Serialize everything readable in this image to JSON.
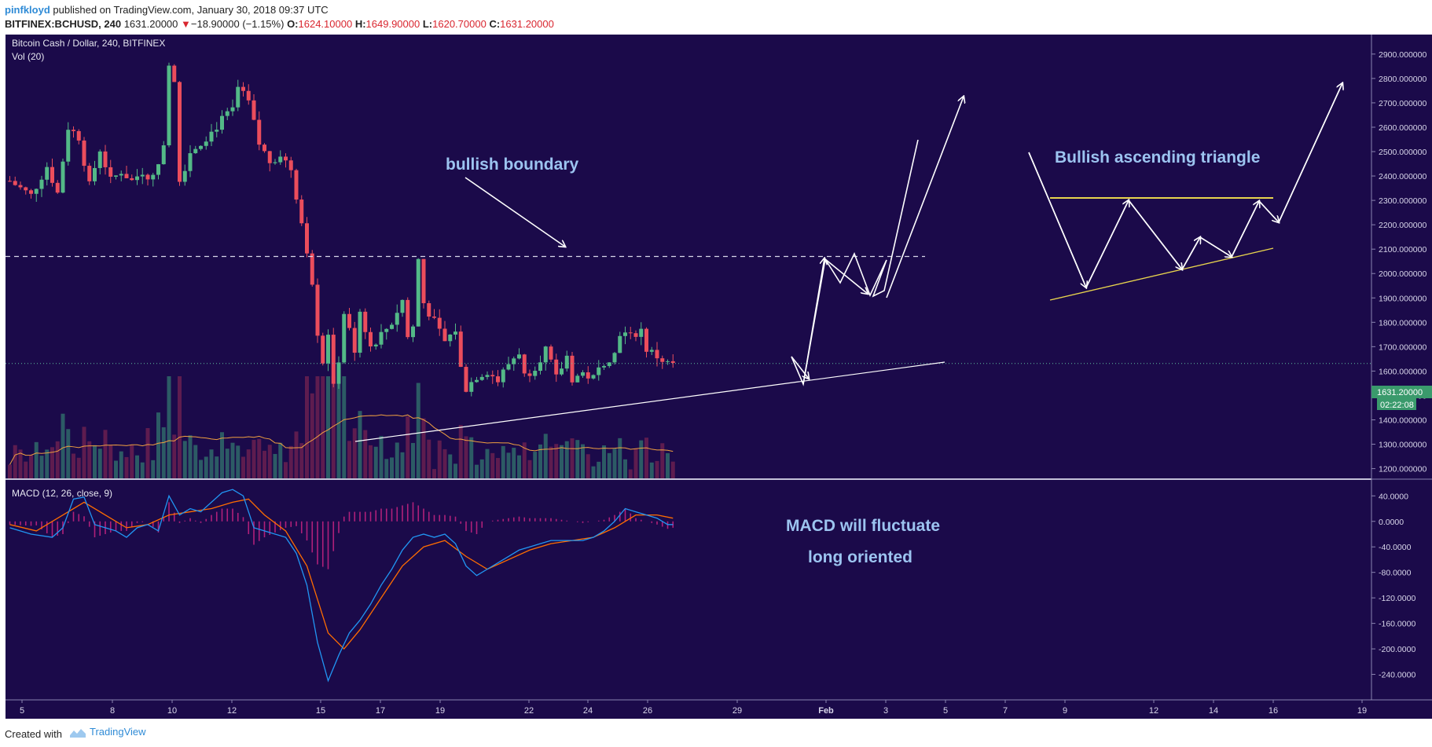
{
  "header": {
    "user": "pinfkloyd",
    "published": "published on TradingView.com, January 30, 2018 09:37 UTC",
    "symbol": "BITFINEX:BCHUSD, 240",
    "price": "1631.20000",
    "change_arrow": "▼",
    "change": "−18.90000 (−1.15%)",
    "o_label": "O:",
    "o_value": "1624.10000",
    "h_label": "H:",
    "h_value": "1649.90000",
    "l_label": "L:",
    "l_value": "1620.70000",
    "c_label": "C:",
    "c_value": "1631.20000"
  },
  "pane": {
    "title": "Bitcoin Cash / Dollar, 240, BITFINEX",
    "vol_label": "Vol (20)",
    "macd_label": "MACD (12, 26, close, 9)",
    "last_price_tag": "1631.20000",
    "countdown_tag": "02:22:08"
  },
  "annotations": {
    "bullish_boundary": "bullish boundary",
    "triangle": "Bullish ascending triangle",
    "macd_1": "MACD will fluctuate",
    "macd_2": "long oriented"
  },
  "footer": {
    "created_with": "Created with",
    "brand": "TradingView"
  },
  "colors": {
    "background": "#1b0a4a",
    "bull": "#53b987",
    "bear": "#eb4d5c",
    "macd": "#2196f3",
    "signal": "#ff6d00",
    "hist": "#b0207a",
    "triangle_line": "#e8d44d",
    "annotation_text": "#9cc4f0",
    "price_tag": "#3a9a6c"
  },
  "chart_data": {
    "type": "candlestick",
    "price_axis": {
      "ylim": [
        1160,
        2980
      ],
      "ticks": [
        "2900.000000",
        "2800.000000",
        "2700.000000",
        "2600.000000",
        "2500.000000",
        "2400.000000",
        "2300.000000",
        "2200.000000",
        "2100.000000",
        "2000.000000",
        "1900.000000",
        "1800.000000",
        "1700.000000",
        "1600.000000",
        "1500.000000",
        "1400.000000",
        "1300.000000",
        "1200.000000"
      ]
    },
    "macd_axis": {
      "ylim": [
        -280,
        65
      ],
      "ticks": [
        "40.0000",
        "0.0000",
        "-40.0000",
        "-80.0000",
        "-120.0000",
        "-160.0000",
        "-200.0000",
        "-240.0000"
      ]
    },
    "time_axis": {
      "ticks": [
        "5",
        "8",
        "10",
        "12",
        "15",
        "17",
        "19",
        "22",
        "24",
        "26",
        "29",
        "Feb",
        "3",
        "5",
        "7",
        "9",
        "12",
        "14",
        "16",
        "19"
      ]
    },
    "close_path": [
      [
        0,
        2380
      ],
      [
        4,
        2320
      ],
      [
        7,
        2440
      ],
      [
        9,
        2330
      ],
      [
        11,
        2600
      ],
      [
        13,
        2560
      ],
      [
        15,
        2360
      ],
      [
        17,
        2510
      ],
      [
        19,
        2380
      ],
      [
        21,
        2420
      ],
      [
        23,
        2380
      ],
      [
        25,
        2420
      ],
      [
        27,
        2390
      ],
      [
        29,
        2540
      ],
      [
        30,
        2870
      ],
      [
        31,
        2800
      ],
      [
        32,
        2380
      ],
      [
        34,
        2500
      ],
      [
        36,
        2540
      ],
      [
        38,
        2580
      ],
      [
        40,
        2630
      ],
      [
        42,
        2670
      ],
      [
        43,
        2760
      ],
      [
        45,
        2700
      ],
      [
        47,
        2530
      ],
      [
        49,
        2460
      ],
      [
        51,
        2490
      ],
      [
        53,
        2430
      ],
      [
        54,
        2320
      ],
      [
        56,
        2100
      ],
      [
        57,
        1970
      ],
      [
        58,
        1760
      ],
      [
        59,
        1640
      ],
      [
        60,
        1760
      ],
      [
        61,
        1530
      ],
      [
        62,
        1650
      ],
      [
        63,
        1840
      ],
      [
        65,
        1690
      ],
      [
        66,
        1850
      ],
      [
        68,
        1700
      ],
      [
        70,
        1750
      ],
      [
        72,
        1800
      ],
      [
        74,
        1890
      ],
      [
        75,
        1740
      ],
      [
        76,
        1780
      ],
      [
        77,
        2060
      ],
      [
        78,
        1880
      ],
      [
        80,
        1800
      ],
      [
        82,
        1720
      ],
      [
        84,
        1770
      ],
      [
        85,
        1610
      ],
      [
        86,
        1530
      ],
      [
        88,
        1580
      ],
      [
        90,
        1600
      ],
      [
        92,
        1560
      ],
      [
        94,
        1630
      ],
      [
        96,
        1680
      ],
      [
        97,
        1580
      ],
      [
        99,
        1620
      ],
      [
        101,
        1690
      ],
      [
        103,
        1570
      ],
      [
        105,
        1660
      ],
      [
        106,
        1570
      ],
      [
        108,
        1590
      ],
      [
        110,
        1570
      ],
      [
        112,
        1640
      ],
      [
        114,
        1670
      ],
      [
        115,
        1760
      ],
      [
        117,
        1740
      ],
      [
        119,
        1770
      ],
      [
        120,
        1690
      ],
      [
        122,
        1660
      ],
      [
        124,
        1630
      ],
      [
        125,
        1631
      ]
    ],
    "macd_path": [
      [
        0,
        -10
      ],
      [
        4,
        -20
      ],
      [
        8,
        -25
      ],
      [
        10,
        -10
      ],
      [
        12,
        35
      ],
      [
        14,
        38
      ],
      [
        16,
        -5
      ],
      [
        18,
        -10
      ],
      [
        20,
        -15
      ],
      [
        22,
        -25
      ],
      [
        24,
        -10
      ],
      [
        26,
        -5
      ],
      [
        28,
        -15
      ],
      [
        30,
        40
      ],
      [
        32,
        10
      ],
      [
        34,
        20
      ],
      [
        36,
        15
      ],
      [
        38,
        30
      ],
      [
        40,
        45
      ],
      [
        42,
        50
      ],
      [
        44,
        40
      ],
      [
        46,
        -10
      ],
      [
        48,
        -15
      ],
      [
        50,
        -20
      ],
      [
        52,
        -25
      ],
      [
        54,
        -50
      ],
      [
        56,
        -100
      ],
      [
        58,
        -190
      ],
      [
        60,
        -250
      ],
      [
        62,
        -210
      ],
      [
        64,
        -175
      ],
      [
        66,
        -155
      ],
      [
        68,
        -130
      ],
      [
        70,
        -100
      ],
      [
        72,
        -75
      ],
      [
        74,
        -45
      ],
      [
        76,
        -25
      ],
      [
        78,
        -20
      ],
      [
        80,
        -25
      ],
      [
        82,
        -20
      ],
      [
        84,
        -35
      ],
      [
        86,
        -70
      ],
      [
        88,
        -85
      ],
      [
        90,
        -75
      ],
      [
        92,
        -65
      ],
      [
        94,
        -55
      ],
      [
        96,
        -45
      ],
      [
        98,
        -40
      ],
      [
        100,
        -35
      ],
      [
        102,
        -30
      ],
      [
        104,
        -30
      ],
      [
        106,
        -30
      ],
      [
        108,
        -30
      ],
      [
        110,
        -25
      ],
      [
        112,
        -15
      ],
      [
        114,
        0
      ],
      [
        116,
        20
      ],
      [
        118,
        15
      ],
      [
        120,
        10
      ],
      [
        122,
        5
      ],
      [
        124,
        -5
      ],
      [
        125,
        -5
      ]
    ],
    "signal_path": [
      [
        0,
        -5
      ],
      [
        5,
        -15
      ],
      [
        10,
        10
      ],
      [
        14,
        30
      ],
      [
        18,
        10
      ],
      [
        22,
        -10
      ],
      [
        26,
        -5
      ],
      [
        30,
        10
      ],
      [
        34,
        15
      ],
      [
        38,
        20
      ],
      [
        42,
        30
      ],
      [
        45,
        35
      ],
      [
        48,
        10
      ],
      [
        52,
        -15
      ],
      [
        56,
        -70
      ],
      [
        60,
        -175
      ],
      [
        63,
        -200
      ],
      [
        66,
        -170
      ],
      [
        70,
        -120
      ],
      [
        74,
        -70
      ],
      [
        78,
        -40
      ],
      [
        82,
        -30
      ],
      [
        86,
        -55
      ],
      [
        90,
        -75
      ],
      [
        94,
        -60
      ],
      [
        98,
        -45
      ],
      [
        102,
        -35
      ],
      [
        106,
        -30
      ],
      [
        110,
        -25
      ],
      [
        114,
        -10
      ],
      [
        118,
        10
      ],
      [
        122,
        10
      ],
      [
        125,
        5
      ]
    ],
    "levels": {
      "resistance_dashed": 2070,
      "last_price": 1631.2,
      "triangle_top": 2300
    }
  }
}
